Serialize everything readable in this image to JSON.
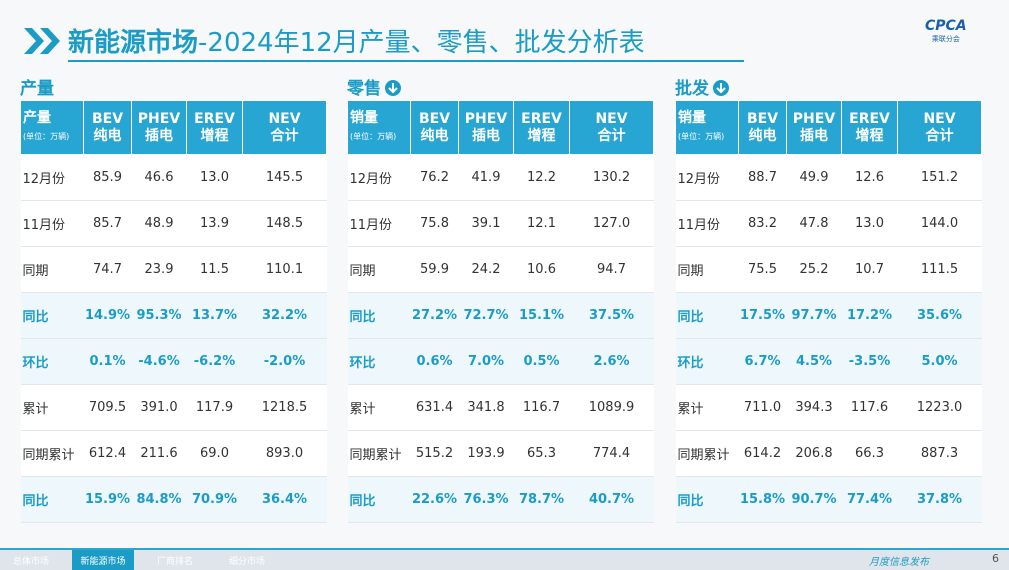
{
  "header": {
    "title_bold": "新能源市场",
    "title_rest": "-2024年12月产量、零售、批发分析表",
    "logo": "CPCA",
    "logo_sub": "乘联分会"
  },
  "tables": [
    {
      "section": "产量",
      "header": [
        [
          "产量",
          "(单位：万辆)"
        ],
        [
          "BEV",
          "纯电"
        ],
        [
          "PHEV",
          "插电"
        ],
        [
          "EREV",
          "增程"
        ],
        [
          "NEV",
          "合计"
        ]
      ],
      "rows": [
        {
          "label": "12月份",
          "values": [
            "85.9",
            "46.6",
            "13.0",
            "145.5"
          ]
        },
        {
          "label": "11月份",
          "values": [
            "85.7",
            "48.9",
            "13.9",
            "148.5"
          ]
        },
        {
          "label": "同期",
          "values": [
            "74.7",
            "23.9",
            "11.5",
            "110.1"
          ]
        },
        {
          "label": "同比",
          "values": [
            "14.9%",
            "95.3%",
            "13.7%",
            "32.2%"
          ]
        },
        {
          "label": "环比",
          "values": [
            "0.1%",
            "-4.6%",
            "-6.2%",
            "-2.0%"
          ]
        },
        {
          "label": "累计",
          "values": [
            "709.5",
            "391.0",
            "117.9",
            "1218.5"
          ]
        },
        {
          "label": "同期累计",
          "values": [
            "612.4",
            "211.6",
            "69.0",
            "893.0"
          ]
        },
        {
          "label": "同比",
          "values": [
            "15.9%",
            "84.8%",
            "70.9%",
            "36.4%"
          ]
        }
      ]
    },
    {
      "section": "零售",
      "header": [
        [
          "销量",
          "(单位：万辆)"
        ],
        [
          "BEV",
          "纯电"
        ],
        [
          "PHEV",
          "插电"
        ],
        [
          "EREV",
          "增程"
        ],
        [
          "NEV",
          "合计"
        ]
      ],
      "rows": [
        {
          "label": "12月份",
          "values": [
            "76.2",
            "41.9",
            "12.2",
            "130.2"
          ]
        },
        {
          "label": "11月份",
          "values": [
            "75.8",
            "39.1",
            "12.1",
            "127.0"
          ]
        },
        {
          "label": "同期",
          "values": [
            "59.9",
            "24.2",
            "10.6",
            "94.7"
          ]
        },
        {
          "label": "同比",
          "values": [
            "27.2%",
            "72.7%",
            "15.1%",
            "37.5%"
          ]
        },
        {
          "label": "环比",
          "values": [
            "0.6%",
            "7.0%",
            "0.5%",
            "2.6%"
          ]
        },
        {
          "label": "累计",
          "values": [
            "631.4",
            "341.8",
            "116.7",
            "1089.9"
          ]
        },
        {
          "label": "同期累计",
          "values": [
            "515.2",
            "193.9",
            "65.3",
            "774.4"
          ]
        },
        {
          "label": "同比",
          "values": [
            "22.6%",
            "76.3%",
            "78.7%",
            "40.7%"
          ]
        }
      ]
    },
    {
      "section": "批发",
      "header": [
        [
          "销量",
          "(单位：万辆)"
        ],
        [
          "BEV",
          "纯电"
        ],
        [
          "PHEV",
          "插电"
        ],
        [
          "EREV",
          "增程"
        ],
        [
          "NEV",
          "合计"
        ]
      ],
      "rows": [
        {
          "label": "12月份",
          "values": [
            "88.7",
            "49.9",
            "12.6",
            "151.2"
          ]
        },
        {
          "label": "11月份",
          "values": [
            "83.2",
            "47.8",
            "13.0",
            "144.0"
          ]
        },
        {
          "label": "同期",
          "values": [
            "75.5",
            "25.2",
            "10.7",
            "111.5"
          ]
        },
        {
          "label": "同比",
          "values": [
            "17.5%",
            "97.7%",
            "17.2%",
            "35.6%"
          ]
        },
        {
          "label": "环比",
          "values": [
            "6.7%",
            "4.5%",
            "-3.5%",
            "5.0%"
          ]
        },
        {
          "label": "累计",
          "values": [
            "711.0",
            "394.3",
            "117.6",
            "1223.0"
          ]
        },
        {
          "label": "同期累计",
          "values": [
            "614.2",
            "206.8",
            "66.3",
            "887.3"
          ]
        },
        {
          "label": "同比",
          "values": [
            "15.8%",
            "90.7%",
            "77.4%",
            "37.8%"
          ]
        }
      ]
    }
  ],
  "footer": {
    "tabs": [
      "总体市场",
      "新能源市场",
      "厂商排名",
      "细分市场"
    ],
    "note": "月度信息发布",
    "page": "6"
  }
}
